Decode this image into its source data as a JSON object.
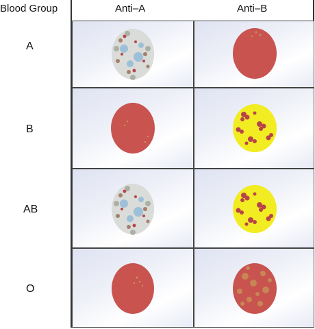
{
  "headers": {
    "group": "Blood Group",
    "anti_a": "Anti–A",
    "anti_b": "Anti–B"
  },
  "rows": [
    {
      "label": "A",
      "anti_a": "agglutinated",
      "anti_b": "red"
    },
    {
      "label": "B",
      "anti_a": "red",
      "anti_b": "yellow"
    },
    {
      "label": "AB",
      "anti_a": "agglutinated",
      "anti_b": "yellow"
    },
    {
      "label": "O",
      "anti_a": "red",
      "anti_b": "speckled"
    }
  ],
  "colors": {
    "red_drop": "#c8534f",
    "yellow_drop": "#f2ec22",
    "clump": "#b8444a",
    "cell_bg": "#e6e9f5"
  }
}
